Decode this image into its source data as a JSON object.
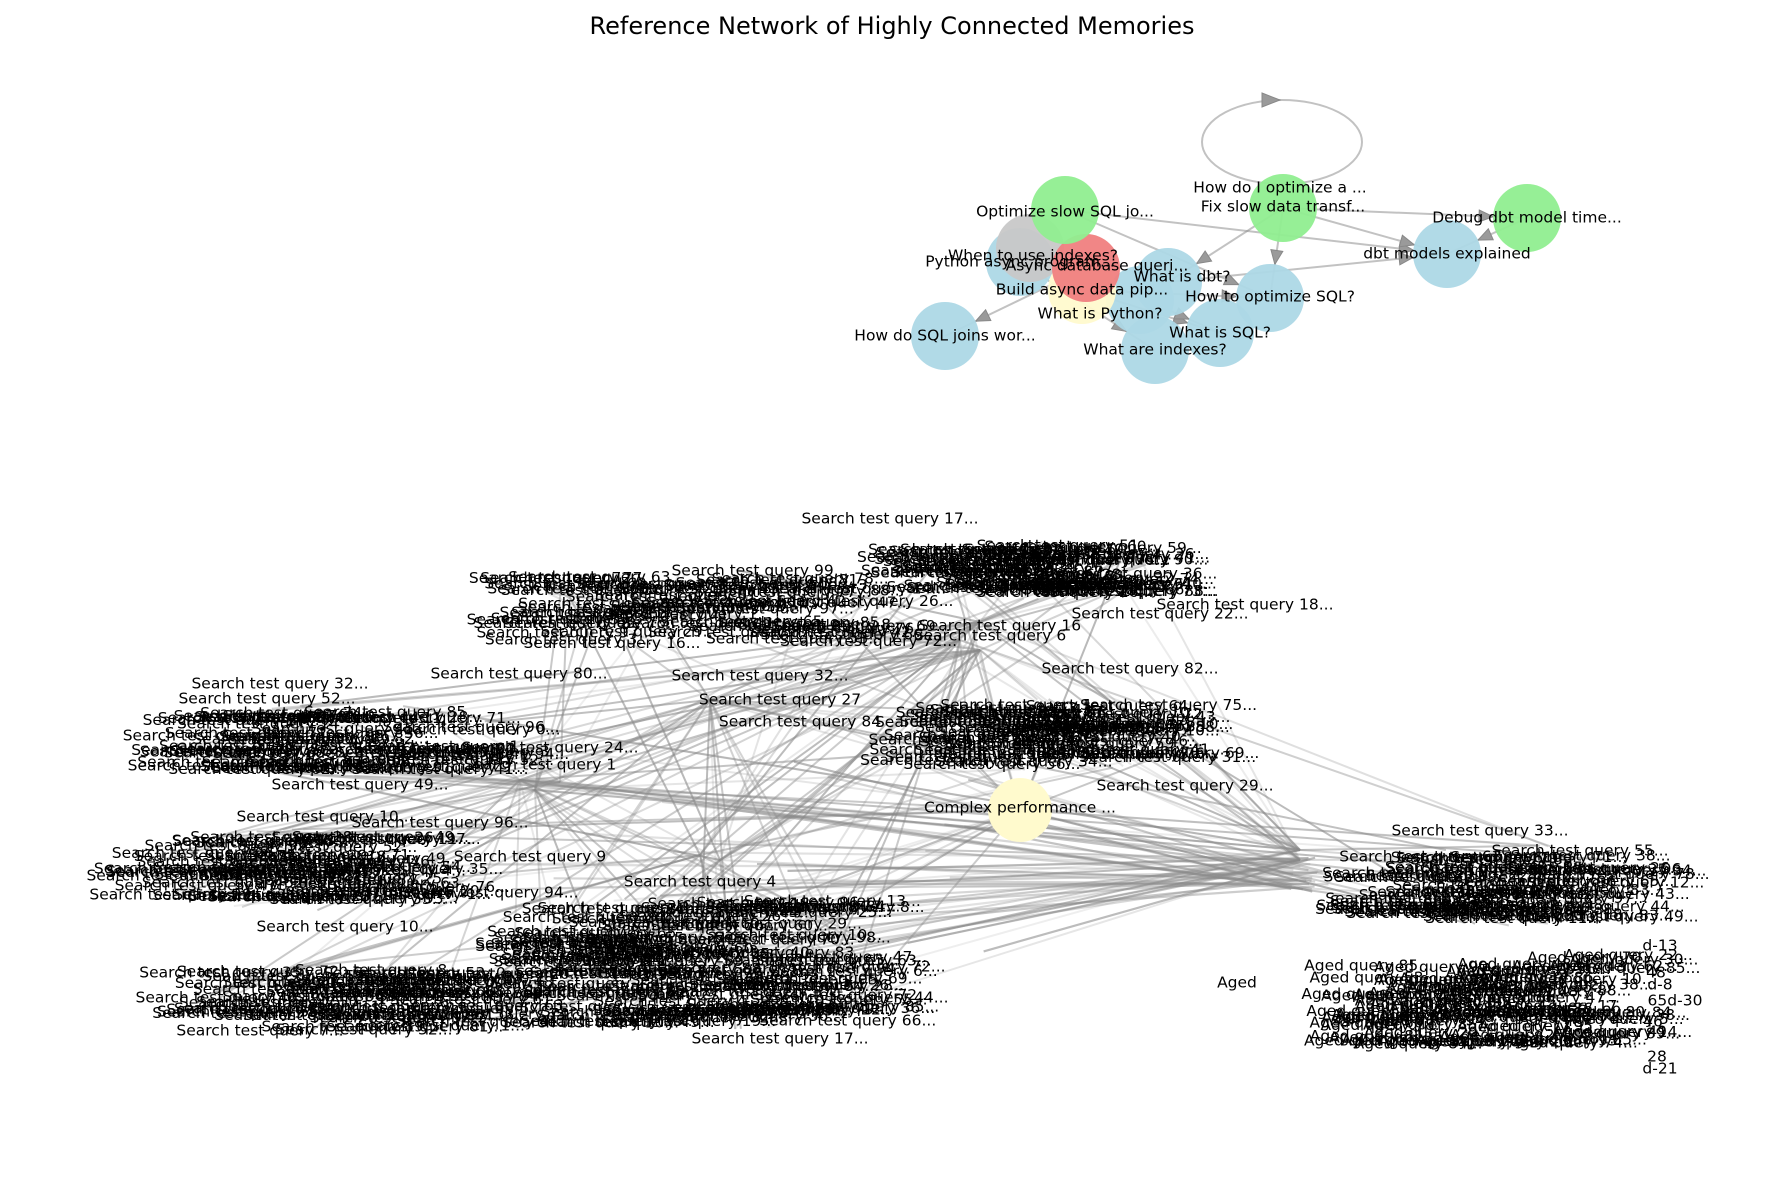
{
  "title": "Reference Network of Highly Connected Memories",
  "colors": {
    "blue": "#add8e6",
    "green": "#90ee90",
    "red": "#f08080",
    "yellow": "#fffacd",
    "gray": "#c8c8c8",
    "edge": "#8f8f8f",
    "background": "#ffffff"
  },
  "top_cluster": {
    "nodes": [
      {
        "id": "opt_sql_joins",
        "label": "Optimize slow SQL jo...",
        "color": "green"
      },
      {
        "id": "how_optimize_a",
        "label": "How do I optimize a ...",
        "color": "green"
      },
      {
        "id": "fix_slow",
        "label": "Fix slow data transf...",
        "color": "green"
      },
      {
        "id": "debug_dbt",
        "label": "Debug dbt model time...",
        "color": "green"
      },
      {
        "id": "when_indexes",
        "label": "When to use indexes?",
        "color": "gray"
      },
      {
        "id": "async_db",
        "label": "Async database queri...",
        "color": "red"
      },
      {
        "id": "python_async",
        "label": "Python async program...",
        "color": "blue"
      },
      {
        "id": "build_async",
        "label": "Build async data pip...",
        "color": "yellow"
      },
      {
        "id": "what_dbt",
        "label": "What is dbt?",
        "color": "blue"
      },
      {
        "id": "what_python",
        "label": "What is Python?",
        "color": "blue"
      },
      {
        "id": "how_opt_sql",
        "label": "How to optimize SQL?",
        "color": "blue"
      },
      {
        "id": "what_sql",
        "label": "What is SQL?",
        "color": "blue"
      },
      {
        "id": "what_indexes",
        "label": "What are indexes?",
        "color": "blue"
      },
      {
        "id": "sql_joins",
        "label": "How do SQL joins wor...",
        "color": "blue"
      },
      {
        "id": "dbt_models",
        "label": "dbt models explained",
        "color": "blue"
      }
    ],
    "edges": [
      [
        "fix_slow",
        "fix_slow"
      ],
      [
        "opt_sql_joins",
        "dbt_models"
      ],
      [
        "how_optimize_a",
        "debug_dbt"
      ],
      [
        "fix_slow",
        "dbt_models"
      ],
      [
        "fix_slow",
        "how_opt_sql"
      ],
      [
        "fix_slow",
        "what_dbt"
      ],
      [
        "async_db",
        "sql_joins"
      ],
      [
        "what_dbt",
        "dbt_models"
      ],
      [
        "debug_dbt",
        "dbt_models"
      ],
      [
        "build_async",
        "what_sql"
      ],
      [
        "build_async",
        "how_opt_sql"
      ],
      [
        "python_async",
        "what_indexes"
      ],
      [
        "when_indexes",
        "what_sql"
      ],
      [
        "opt_sql_joins",
        "how_opt_sql"
      ]
    ]
  },
  "bottom_cluster": {
    "hub_labels": [
      {
        "id": "sq4",
        "label": "Search test query 4",
        "color": "yellow"
      },
      {
        "id": "sq6",
        "label": "Search test query 6",
        "color": "yellow"
      },
      {
        "id": "sq16",
        "label": "Search test query 16",
        "color": "yellow"
      },
      {
        "id": "sq27",
        "label": "Search test query 27",
        "color": "yellow"
      },
      {
        "id": "sq84",
        "label": "Search test query 84",
        "color": "yellow"
      },
      {
        "id": "sq1",
        "label": "Search test query 1",
        "color": "yellow"
      },
      {
        "id": "sq9",
        "label": "Search test query 9",
        "color": "yellow"
      },
      {
        "id": "complex",
        "label": "Complex performance ...",
        "color": "yellow"
      }
    ],
    "group_labels": [
      {
        "id": "g1a",
        "label": "Search test query 17..."
      },
      {
        "id": "g1b",
        "label": "Search test query 18..."
      },
      {
        "id": "g1c",
        "label": "Search test query 22..."
      },
      {
        "id": "g2a",
        "label": "Search test query 99..."
      },
      {
        "id": "g2b",
        "label": "Search test query 80..."
      },
      {
        "id": "g2c",
        "label": "Search test query 32..."
      },
      {
        "id": "g3a",
        "label": "Search test query 82..."
      },
      {
        "id": "g3b",
        "label": "Search test query 29..."
      },
      {
        "id": "g4a",
        "label": "Search test query 32..."
      },
      {
        "id": "g4b",
        "label": "Search test query 52..."
      },
      {
        "id": "g4c",
        "label": "Search test query 49..."
      },
      {
        "id": "g4d",
        "label": "Search test query 24..."
      },
      {
        "id": "g5a",
        "label": "Search test query 10..."
      },
      {
        "id": "g5b",
        "label": "Search test query 96..."
      },
      {
        "id": "g6a",
        "label": "Search test query 10..."
      },
      {
        "id": "g6b",
        "label": "Search test query 7..."
      },
      {
        "id": "g7a",
        "label": "Search test query 17..."
      },
      {
        "id": "g7b",
        "label": "Search test query 44..."
      },
      {
        "id": "g7c",
        "label": "Search test query 94..."
      },
      {
        "id": "g8a",
        "label": "Search test query 33..."
      },
      {
        "id": "g8b",
        "label": "Search test query 55..."
      },
      {
        "id": "g8c",
        "label": "Aged"
      },
      {
        "id": "g8d",
        "label": "d-13"
      },
      {
        "id": "g8e",
        "label": "d-8"
      },
      {
        "id": "g8f",
        "label": "65d-30"
      },
      {
        "id": "g8g",
        "label": "d-21"
      },
      {
        "id": "g8h",
        "label": "48"
      },
      {
        "id": "g8i",
        "label": "46"
      },
      {
        "id": "g8j",
        "label": "28"
      }
    ]
  }
}
